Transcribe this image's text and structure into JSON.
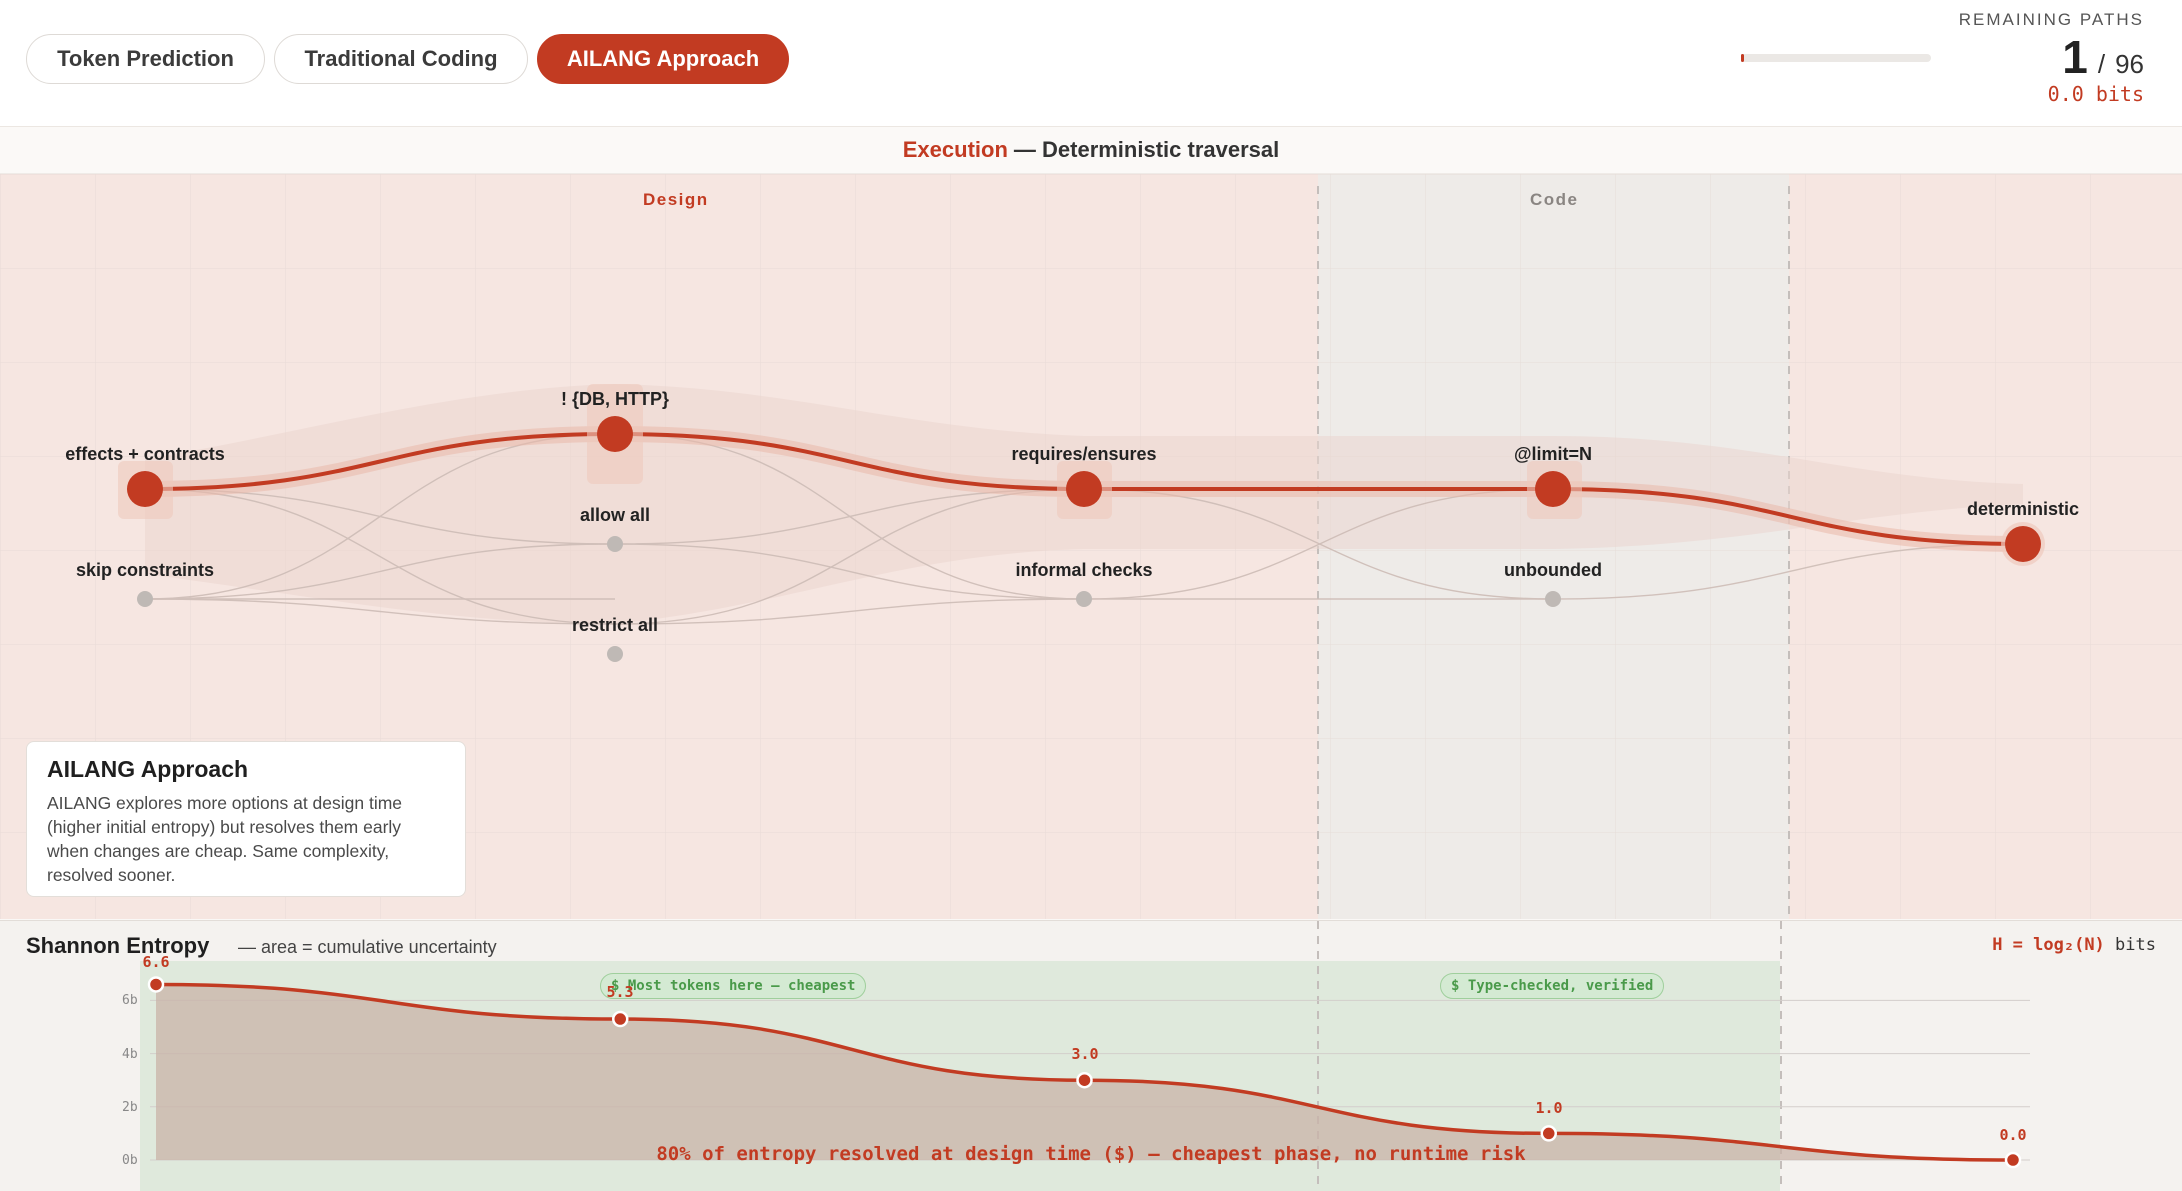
{
  "tabs": [
    {
      "label": "Token Prediction",
      "active": false
    },
    {
      "label": "Traditional Coding",
      "active": false
    },
    {
      "label": "AILANG Approach",
      "active": true
    }
  ],
  "remaining": {
    "label": "REMAINING PATHS",
    "current": "1",
    "slash": "/",
    "total": "96",
    "bits": "0.0 bits",
    "progress_fraction": 0.0104
  },
  "section": {
    "accent": "Execution",
    "rest": "— Deterministic traversal"
  },
  "phases": {
    "design": "Design",
    "code": "Code"
  },
  "nodes": {
    "effects_contracts": "effects + contracts",
    "skip_constraints": "skip constraints",
    "db_http": "! {DB, HTTP}",
    "allow_all": "allow all",
    "restrict_all": "restrict all",
    "requires_ensures": "requires/ensures",
    "informal_checks": "informal checks",
    "limit_n": "@limit=N",
    "unbounded": "unbounded",
    "deterministic": "deterministic"
  },
  "info_card": {
    "title": "AILANG Approach",
    "body": "AILANG explores more options at design time (higher initial entropy) but resolves them early when changes are cheap. Same complexity, resolved sooner."
  },
  "entropy": {
    "title": "Shannon Entropy",
    "subtitle": "— area = cumulative uncertainty",
    "formula": "H = log₂(N)",
    "formula_unit": "bits",
    "yticks": [
      "6b",
      "4b",
      "2b",
      "0b"
    ],
    "badge_design": "$ Most tokens here — cheapest",
    "badge_code": "$ Type-checked, verified",
    "bottom_note": "80% of entropy resolved at design time ($) — cheapest phase, no runtime risk",
    "point_labels": [
      "6.6",
      "5.3",
      "3.0",
      "1.0",
      "0.0"
    ]
  },
  "chart_data": {
    "type": "area",
    "title": "Shannon Entropy",
    "x": [
      0,
      1,
      2,
      3,
      4
    ],
    "series": [
      {
        "values": [
          6.6,
          5.3,
          3.0,
          1.0,
          0.0
        ]
      }
    ],
    "ylim": [
      0,
      7
    ],
    "yticks": [
      "6b",
      "4b",
      "2b",
      "0b"
    ],
    "grid": true
  },
  "colors": {
    "accent": "#c23b22",
    "design_bg": "#f6e6e1",
    "code_bg": "#eeebe8",
    "verified_green": "#d4ead3"
  }
}
